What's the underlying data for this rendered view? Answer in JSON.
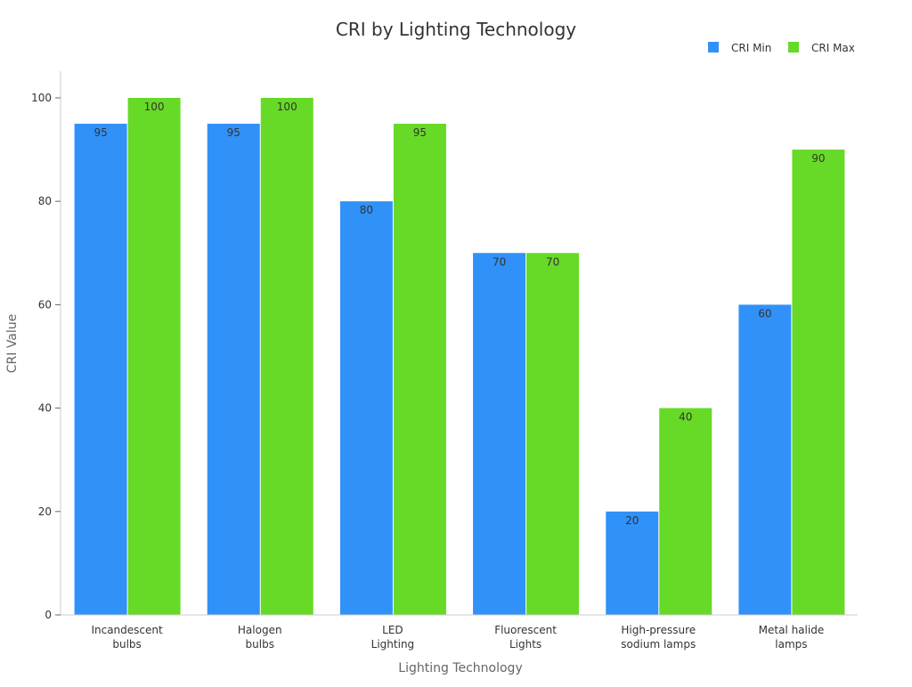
{
  "chart_data": {
    "type": "bar",
    "title": "CRI by Lighting Technology",
    "xlabel": "Lighting Technology",
    "ylabel": "CRI Value",
    "ylim": [
      0,
      100
    ],
    "yticks": [
      0,
      20,
      40,
      60,
      80,
      100
    ],
    "grid": false,
    "legend_position": "top-right",
    "categories": [
      [
        "Incandescent",
        "bulbs"
      ],
      [
        "Halogen",
        "bulbs"
      ],
      [
        "LED",
        "Lighting"
      ],
      [
        "Fluorescent",
        "Lights"
      ],
      [
        "High-pressure",
        "sodium lamps"
      ],
      [
        "Metal halide",
        "lamps"
      ]
    ],
    "series": [
      {
        "name": "CRI Min",
        "color": "#3091F8",
        "values": [
          95,
          95,
          80,
          70,
          20,
          60
        ]
      },
      {
        "name": "CRI Max",
        "color": "#66DA26",
        "values": [
          100,
          100,
          95,
          70,
          40,
          90
        ]
      }
    ]
  }
}
